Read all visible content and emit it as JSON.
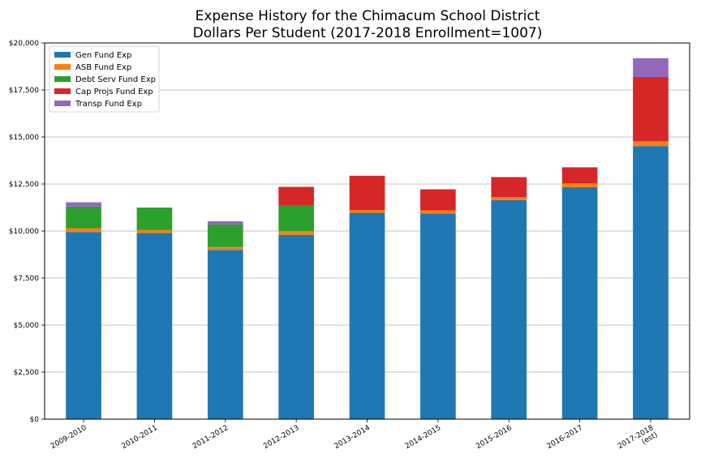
{
  "chart_data": {
    "type": "bar",
    "stacked": true,
    "title_lines": [
      "Expense History for the Chimacum School District",
      "Dollars Per Student (2017-2018 Enrollment=1007)"
    ],
    "categories": [
      [
        "2009-2010"
      ],
      [
        "2010-2011"
      ],
      [
        "2011-2012"
      ],
      [
        "2012-2013"
      ],
      [
        "2013-2014"
      ],
      [
        "2014-2015"
      ],
      [
        "2015-2016"
      ],
      [
        "2016-2017"
      ],
      [
        "2017-2018",
        "(est)"
      ]
    ],
    "series": [
      {
        "name": "Gen Fund Exp",
        "color": "#1f77b4",
        "values": [
          9950,
          9900,
          9000,
          9800,
          10970,
          10930,
          11650,
          12330,
          14520
        ]
      },
      {
        "name": "ASB Fund Exp",
        "color": "#ff7f0e",
        "values": [
          200,
          150,
          150,
          200,
          150,
          170,
          150,
          200,
          250
        ]
      },
      {
        "name": "Debt Serv Fund Exp",
        "color": "#2ca02c",
        "values": [
          1150,
          1200,
          1200,
          1350,
          0,
          0,
          0,
          0,
          0
        ]
      },
      {
        "name": "Cap Projs Fund Exp",
        "color": "#d62728",
        "values": [
          0,
          0,
          0,
          1000,
          1820,
          1120,
          1070,
          860,
          3420
        ]
      },
      {
        "name": "Transp Fund Exp",
        "color": "#9467bd",
        "values": [
          230,
          0,
          170,
          0,
          0,
          0,
          0,
          0,
          1000
        ]
      }
    ],
    "y_ticks": [
      "$0",
      "$2,500",
      "$5,000",
      "$7,500",
      "$10,000",
      "$12,500",
      "$15,000",
      "$17,500",
      "$20,000"
    ],
    "ylim": [
      0,
      20000
    ],
    "y_tick_step": 2500,
    "grid": "horizontal",
    "legend_position": "top-left",
    "xlabel": "",
    "ylabel": ""
  }
}
